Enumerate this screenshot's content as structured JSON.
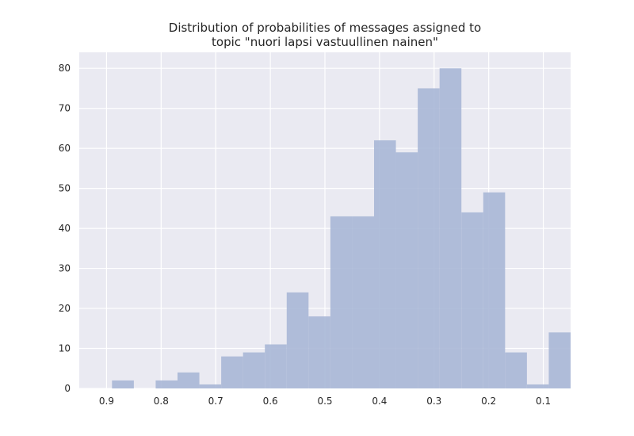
{
  "chart_data": {
    "type": "bar",
    "title_line1": "Distribution of probabilities of messages assigned to",
    "title_line2": "topic \"nuori lapsi vastuullinen nainen\"",
    "xlabel": "",
    "ylabel": "",
    "x_reversed": true,
    "xlim": [
      0.95,
      0.05
    ],
    "ylim": [
      0,
      84
    ],
    "bin_width": 0.04,
    "grid": true,
    "xticks": [
      0.9,
      0.8,
      0.7,
      0.6,
      0.5,
      0.4,
      0.3,
      0.2,
      0.1
    ],
    "xtick_labels": [
      "0.9",
      "0.8",
      "0.7",
      "0.6",
      "0.5",
      "0.4",
      "0.3",
      "0.2",
      "0.1"
    ],
    "yticks": [
      0,
      10,
      20,
      30,
      40,
      50,
      60,
      70,
      80
    ],
    "ytick_labels": [
      "0",
      "10",
      "20",
      "30",
      "40",
      "50",
      "60",
      "70",
      "80"
    ],
    "bins": [
      {
        "start": 0.05,
        "count": 14
      },
      {
        "start": 0.09,
        "count": 1
      },
      {
        "start": 0.13,
        "count": 9
      },
      {
        "start": 0.17,
        "count": 49
      },
      {
        "start": 0.21,
        "count": 44
      },
      {
        "start": 0.25,
        "count": 80
      },
      {
        "start": 0.29,
        "count": 75
      },
      {
        "start": 0.33,
        "count": 59
      },
      {
        "start": 0.37,
        "count": 62
      },
      {
        "start": 0.41,
        "count": 43
      },
      {
        "start": 0.45,
        "count": 43
      },
      {
        "start": 0.49,
        "count": 18
      },
      {
        "start": 0.53,
        "count": 24
      },
      {
        "start": 0.57,
        "count": 11
      },
      {
        "start": 0.61,
        "count": 9
      },
      {
        "start": 0.65,
        "count": 8
      },
      {
        "start": 0.69,
        "count": 1
      },
      {
        "start": 0.73,
        "count": 4
      },
      {
        "start": 0.77,
        "count": 2
      },
      {
        "start": 0.81,
        "count": 0
      },
      {
        "start": 0.85,
        "count": 2
      }
    ],
    "colors": {
      "bar": "#a8b7d6",
      "plot_background": "#eaeaf2",
      "grid": "#ffffff",
      "text": "#262626"
    }
  }
}
